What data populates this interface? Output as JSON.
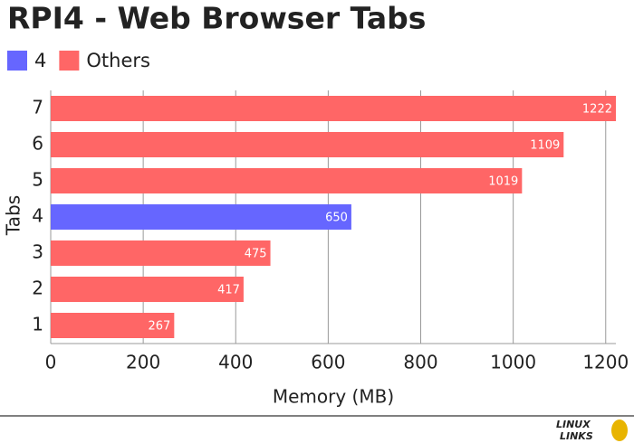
{
  "chart_data": {
    "type": "bar",
    "orientation": "horizontal",
    "title": "RPI4 - Web Browser Tabs",
    "categories": [
      "7",
      "6",
      "5",
      "4",
      "3",
      "2",
      "1"
    ],
    "series": [
      {
        "name": "4",
        "color": "#6666ff",
        "values": [
          null,
          null,
          null,
          650,
          null,
          null,
          null
        ]
      },
      {
        "name": "Others",
        "color": "#ff6666",
        "values": [
          1222,
          1109,
          1019,
          null,
          475,
          417,
          267
        ]
      }
    ],
    "xlabel": "Memory (MB)",
    "ylabel": "Tabs",
    "xlim": [
      0,
      1222
    ],
    "xticks": [
      0,
      200,
      400,
      600,
      800,
      1000,
      1200
    ],
    "grid": true,
    "legend": "top-left",
    "logo": [
      "LINUX",
      "LINKS"
    ]
  }
}
